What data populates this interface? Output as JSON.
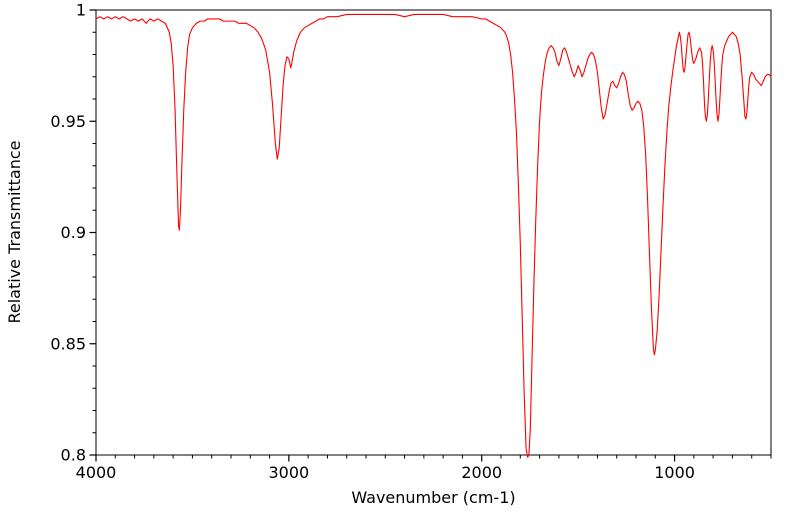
{
  "chart_data": {
    "type": "line",
    "title": "",
    "xlabel": "Wavenumber (cm-1)",
    "ylabel": "Relative Transmittance",
    "xlim": [
      4000,
      500
    ],
    "x_reversed": true,
    "ylim": [
      0.8,
      1.0
    ],
    "x_major_ticks": [
      4000,
      3000,
      2000,
      1000
    ],
    "x_tick_labels": [
      "4000",
      "3000",
      "2000",
      "1000"
    ],
    "x_minor_step": 100,
    "y_major_ticks": [
      0.8,
      0.85,
      0.9,
      0.95,
      1.0
    ],
    "y_tick_labels": [
      "0.8",
      "0.85",
      "0.9",
      "0.95",
      "1"
    ],
    "y_minor_step": 0.01,
    "grid": false,
    "legend": "none",
    "line_color": "#ff0000",
    "frame_color": "#000000",
    "background": "#ffffff",
    "series": [
      {
        "name": "IR transmittance spectrum",
        "points": [
          [
            4000,
            0.996
          ],
          [
            3980,
            0.997
          ],
          [
            3960,
            0.996
          ],
          [
            3940,
            0.997
          ],
          [
            3920,
            0.996
          ],
          [
            3900,
            0.997
          ],
          [
            3880,
            0.996
          ],
          [
            3860,
            0.997
          ],
          [
            3840,
            0.996
          ],
          [
            3820,
            0.995
          ],
          [
            3800,
            0.996
          ],
          [
            3780,
            0.995
          ],
          [
            3760,
            0.996
          ],
          [
            3740,
            0.994
          ],
          [
            3720,
            0.996
          ],
          [
            3700,
            0.995
          ],
          [
            3680,
            0.996
          ],
          [
            3660,
            0.995
          ],
          [
            3640,
            0.994
          ],
          [
            3620,
            0.99
          ],
          [
            3610,
            0.985
          ],
          [
            3600,
            0.975
          ],
          [
            3590,
            0.955
          ],
          [
            3580,
            0.925
          ],
          [
            3572,
            0.903
          ],
          [
            3568,
            0.901
          ],
          [
            3562,
            0.91
          ],
          [
            3555,
            0.93
          ],
          [
            3545,
            0.955
          ],
          [
            3535,
            0.972
          ],
          [
            3525,
            0.983
          ],
          [
            3515,
            0.989
          ],
          [
            3500,
            0.992
          ],
          [
            3480,
            0.994
          ],
          [
            3460,
            0.995
          ],
          [
            3440,
            0.995
          ],
          [
            3420,
            0.996
          ],
          [
            3400,
            0.996
          ],
          [
            3380,
            0.996
          ],
          [
            3360,
            0.996
          ],
          [
            3340,
            0.995
          ],
          [
            3320,
            0.995
          ],
          [
            3300,
            0.995
          ],
          [
            3280,
            0.995
          ],
          [
            3260,
            0.994
          ],
          [
            3240,
            0.994
          ],
          [
            3220,
            0.994
          ],
          [
            3200,
            0.993
          ],
          [
            3180,
            0.992
          ],
          [
            3160,
            0.99
          ],
          [
            3140,
            0.987
          ],
          [
            3120,
            0.982
          ],
          [
            3100,
            0.972
          ],
          [
            3085,
            0.958
          ],
          [
            3070,
            0.94
          ],
          [
            3060,
            0.933
          ],
          [
            3050,
            0.938
          ],
          [
            3040,
            0.952
          ],
          [
            3030,
            0.966
          ],
          [
            3020,
            0.975
          ],
          [
            3010,
            0.979
          ],
          [
            3000,
            0.978
          ],
          [
            2995,
            0.976
          ],
          [
            2990,
            0.974
          ],
          [
            2985,
            0.976
          ],
          [
            2975,
            0.981
          ],
          [
            2960,
            0.986
          ],
          [
            2940,
            0.99
          ],
          [
            2920,
            0.992
          ],
          [
            2900,
            0.993
          ],
          [
            2880,
            0.994
          ],
          [
            2860,
            0.995
          ],
          [
            2840,
            0.996
          ],
          [
            2820,
            0.996
          ],
          [
            2800,
            0.997
          ],
          [
            2750,
            0.997
          ],
          [
            2700,
            0.998
          ],
          [
            2650,
            0.998
          ],
          [
            2600,
            0.998
          ],
          [
            2550,
            0.998
          ],
          [
            2500,
            0.998
          ],
          [
            2450,
            0.998
          ],
          [
            2400,
            0.997
          ],
          [
            2350,
            0.998
          ],
          [
            2300,
            0.998
          ],
          [
            2250,
            0.998
          ],
          [
            2200,
            0.998
          ],
          [
            2150,
            0.997
          ],
          [
            2100,
            0.997
          ],
          [
            2050,
            0.997
          ],
          [
            2000,
            0.996
          ],
          [
            1980,
            0.996
          ],
          [
            1960,
            0.995
          ],
          [
            1940,
            0.994
          ],
          [
            1920,
            0.993
          ],
          [
            1900,
            0.992
          ],
          [
            1880,
            0.99
          ],
          [
            1870,
            0.988
          ],
          [
            1860,
            0.985
          ],
          [
            1850,
            0.98
          ],
          [
            1840,
            0.972
          ],
          [
            1830,
            0.96
          ],
          [
            1820,
            0.945
          ],
          [
            1810,
            0.922
          ],
          [
            1800,
            0.895
          ],
          [
            1790,
            0.862
          ],
          [
            1780,
            0.828
          ],
          [
            1770,
            0.803
          ],
          [
            1762,
            0.799
          ],
          [
            1755,
            0.8
          ],
          [
            1748,
            0.812
          ],
          [
            1740,
            0.84
          ],
          [
            1730,
            0.875
          ],
          [
            1720,
            0.905
          ],
          [
            1710,
            0.93
          ],
          [
            1700,
            0.95
          ],
          [
            1690,
            0.963
          ],
          [
            1680,
            0.971
          ],
          [
            1670,
            0.977
          ],
          [
            1660,
            0.981
          ],
          [
            1650,
            0.983
          ],
          [
            1640,
            0.984
          ],
          [
            1630,
            0.983
          ],
          [
            1620,
            0.981
          ],
          [
            1610,
            0.977
          ],
          [
            1600,
            0.975
          ],
          [
            1590,
            0.978
          ],
          [
            1580,
            0.982
          ],
          [
            1570,
            0.983
          ],
          [
            1560,
            0.981
          ],
          [
            1550,
            0.978
          ],
          [
            1540,
            0.975
          ],
          [
            1530,
            0.972
          ],
          [
            1520,
            0.97
          ],
          [
            1510,
            0.972
          ],
          [
            1500,
            0.975
          ],
          [
            1490,
            0.973
          ],
          [
            1480,
            0.97
          ],
          [
            1470,
            0.972
          ],
          [
            1460,
            0.975
          ],
          [
            1450,
            0.978
          ],
          [
            1440,
            0.98
          ],
          [
            1430,
            0.981
          ],
          [
            1420,
            0.98
          ],
          [
            1410,
            0.977
          ],
          [
            1400,
            0.972
          ],
          [
            1390,
            0.964
          ],
          [
            1380,
            0.956
          ],
          [
            1370,
            0.951
          ],
          [
            1360,
            0.953
          ],
          [
            1350,
            0.958
          ],
          [
            1340,
            0.963
          ],
          [
            1330,
            0.967
          ],
          [
            1320,
            0.968
          ],
          [
            1310,
            0.966
          ],
          [
            1300,
            0.965
          ],
          [
            1290,
            0.967
          ],
          [
            1280,
            0.97
          ],
          [
            1270,
            0.972
          ],
          [
            1260,
            0.971
          ],
          [
            1250,
            0.968
          ],
          [
            1240,
            0.962
          ],
          [
            1230,
            0.957
          ],
          [
            1220,
            0.955
          ],
          [
            1210,
            0.956
          ],
          [
            1200,
            0.958
          ],
          [
            1190,
            0.959
          ],
          [
            1180,
            0.958
          ],
          [
            1170,
            0.955
          ],
          [
            1160,
            0.948
          ],
          [
            1150,
            0.935
          ],
          [
            1140,
            0.915
          ],
          [
            1130,
            0.89
          ],
          [
            1120,
            0.866
          ],
          [
            1110,
            0.848
          ],
          [
            1105,
            0.845
          ],
          [
            1100,
            0.847
          ],
          [
            1090,
            0.856
          ],
          [
            1080,
            0.872
          ],
          [
            1070,
            0.892
          ],
          [
            1060,
            0.912
          ],
          [
            1050,
            0.93
          ],
          [
            1040,
            0.945
          ],
          [
            1030,
            0.957
          ],
          [
            1020,
            0.965
          ],
          [
            1010,
            0.972
          ],
          [
            1000,
            0.978
          ],
          [
            990,
            0.984
          ],
          [
            980,
            0.988
          ],
          [
            975,
            0.99
          ],
          [
            970,
            0.988
          ],
          [
            965,
            0.984
          ],
          [
            960,
            0.978
          ],
          [
            955,
            0.973
          ],
          [
            950,
            0.972
          ],
          [
            945,
            0.975
          ],
          [
            940,
            0.98
          ],
          [
            935,
            0.985
          ],
          [
            930,
            0.989
          ],
          [
            925,
            0.99
          ],
          [
            920,
            0.988
          ],
          [
            915,
            0.984
          ],
          [
            910,
            0.98
          ],
          [
            905,
            0.977
          ],
          [
            900,
            0.976
          ],
          [
            890,
            0.978
          ],
          [
            880,
            0.981
          ],
          [
            870,
            0.983
          ],
          [
            860,
            0.981
          ],
          [
            855,
            0.976
          ],
          [
            850,
            0.968
          ],
          [
            845,
            0.958
          ],
          [
            840,
            0.952
          ],
          [
            835,
            0.95
          ],
          [
            830,
            0.953
          ],
          [
            825,
            0.96
          ],
          [
            820,
            0.969
          ],
          [
            815,
            0.977
          ],
          [
            810,
            0.982
          ],
          [
            805,
            0.984
          ],
          [
            800,
            0.982
          ],
          [
            795,
            0.977
          ],
          [
            790,
            0.969
          ],
          [
            785,
            0.96
          ],
          [
            780,
            0.953
          ],
          [
            775,
            0.95
          ],
          [
            770,
            0.953
          ],
          [
            765,
            0.96
          ],
          [
            760,
            0.968
          ],
          [
            755,
            0.975
          ],
          [
            750,
            0.98
          ],
          [
            740,
            0.984
          ],
          [
            730,
            0.986
          ],
          [
            720,
            0.988
          ],
          [
            710,
            0.989
          ],
          [
            700,
            0.99
          ],
          [
            690,
            0.989
          ],
          [
            680,
            0.988
          ],
          [
            670,
            0.985
          ],
          [
            660,
            0.98
          ],
          [
            650,
            0.97
          ],
          [
            640,
            0.958
          ],
          [
            635,
            0.952
          ],
          [
            630,
            0.951
          ],
          [
            625,
            0.954
          ],
          [
            620,
            0.96
          ],
          [
            615,
            0.966
          ],
          [
            610,
            0.97
          ],
          [
            600,
            0.972
          ],
          [
            590,
            0.971
          ],
          [
            580,
            0.969
          ],
          [
            570,
            0.968
          ],
          [
            560,
            0.967
          ],
          [
            550,
            0.966
          ],
          [
            540,
            0.968
          ],
          [
            530,
            0.97
          ],
          [
            520,
            0.971
          ],
          [
            510,
            0.971
          ],
          [
            500,
            0.97
          ]
        ]
      }
    ]
  }
}
